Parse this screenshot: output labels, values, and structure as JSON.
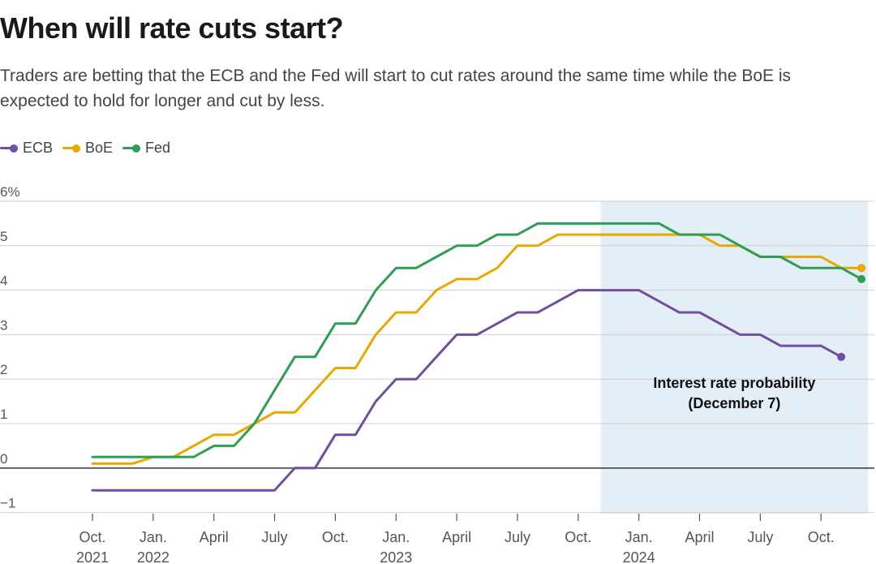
{
  "header": {
    "title": "When will rate cuts start?",
    "subtitle": "Traders are betting that the ECB and the Fed will start to cut rates around the same time while the BoE is expected to hold for longer and cut by less."
  },
  "legend": [
    {
      "name": "ECB",
      "color": "#6f4ea4"
    },
    {
      "name": "BoE",
      "color": "#e8a800"
    },
    {
      "name": "Fed",
      "color": "#2e9e55"
    }
  ],
  "chart_data": {
    "type": "line",
    "x_start": "2021-10",
    "x_end": "2024-12",
    "ylim": [
      -1,
      6
    ],
    "y_ticks": [
      {
        "value": 6,
        "label": "6%"
      },
      {
        "value": 5,
        "label": "5"
      },
      {
        "value": 4,
        "label": "4"
      },
      {
        "value": 3,
        "label": "3"
      },
      {
        "value": 2,
        "label": "2"
      },
      {
        "value": 1,
        "label": "1"
      },
      {
        "value": 0,
        "label": "0"
      },
      {
        "value": -1,
        "label": "−1"
      }
    ],
    "x_ticks": [
      {
        "x": "2021-10",
        "label": "Oct.",
        "year": "2021"
      },
      {
        "x": "2022-01",
        "label": "Jan.",
        "year": "2022"
      },
      {
        "x": "2022-04",
        "label": "April",
        "year": ""
      },
      {
        "x": "2022-07",
        "label": "July",
        "year": ""
      },
      {
        "x": "2022-10",
        "label": "Oct.",
        "year": ""
      },
      {
        "x": "2023-01",
        "label": "Jan.",
        "year": "2023"
      },
      {
        "x": "2023-04",
        "label": "April",
        "year": ""
      },
      {
        "x": "2023-07",
        "label": "July",
        "year": ""
      },
      {
        "x": "2023-10",
        "label": "Oct.",
        "year": ""
      },
      {
        "x": "2024-01",
        "label": "Jan.",
        "year": "2024"
      },
      {
        "x": "2024-04",
        "label": "April",
        "year": ""
      },
      {
        "x": "2024-07",
        "label": "July",
        "year": ""
      },
      {
        "x": "2024-10",
        "label": "Oct.",
        "year": ""
      }
    ],
    "shaded_region": {
      "from": "2023-12",
      "to": "2024-12",
      "label_line1": "Interest rate probability",
      "label_line2": "(December 7)"
    },
    "series": [
      {
        "name": "ECB",
        "color": "#6f4ea4",
        "points": [
          [
            "2021-10",
            -0.5
          ],
          [
            "2022-07",
            -0.5
          ],
          [
            "2022-08",
            0.0
          ],
          [
            "2022-09",
            0.0
          ],
          [
            "2022-10",
            0.75
          ],
          [
            "2022-11",
            0.75
          ],
          [
            "2022-12",
            1.5
          ],
          [
            "2023-01",
            2.0
          ],
          [
            "2023-02",
            2.0
          ],
          [
            "2023-03",
            2.5
          ],
          [
            "2023-04",
            3.0
          ],
          [
            "2023-05",
            3.0
          ],
          [
            "2023-06",
            3.25
          ],
          [
            "2023-07",
            3.5
          ],
          [
            "2023-08",
            3.5
          ],
          [
            "2023-09",
            3.75
          ],
          [
            "2023-10",
            4.0
          ],
          [
            "2024-01",
            4.0
          ],
          [
            "2024-02",
            3.75
          ],
          [
            "2024-03",
            3.5
          ],
          [
            "2024-04",
            3.5
          ],
          [
            "2024-05",
            3.25
          ],
          [
            "2024-06",
            3.0
          ],
          [
            "2024-07",
            3.0
          ],
          [
            "2024-08",
            2.75
          ],
          [
            "2024-09",
            2.75
          ],
          [
            "2024-10",
            2.75
          ],
          [
            "2024-11",
            2.5
          ]
        ]
      },
      {
        "name": "BoE",
        "color": "#e8a800",
        "points": [
          [
            "2021-10",
            0.1
          ],
          [
            "2021-12",
            0.1
          ],
          [
            "2022-01",
            0.25
          ],
          [
            "2022-02",
            0.25
          ],
          [
            "2022-03",
            0.5
          ],
          [
            "2022-04",
            0.75
          ],
          [
            "2022-05",
            0.75
          ],
          [
            "2022-06",
            1.0
          ],
          [
            "2022-07",
            1.25
          ],
          [
            "2022-08",
            1.25
          ],
          [
            "2022-09",
            1.75
          ],
          [
            "2022-10",
            2.25
          ],
          [
            "2022-11",
            2.25
          ],
          [
            "2022-12",
            3.0
          ],
          [
            "2023-01",
            3.5
          ],
          [
            "2023-02",
            3.5
          ],
          [
            "2023-03",
            4.0
          ],
          [
            "2023-04",
            4.25
          ],
          [
            "2023-05",
            4.25
          ],
          [
            "2023-06",
            4.5
          ],
          [
            "2023-07",
            5.0
          ],
          [
            "2023-08",
            5.0
          ],
          [
            "2023-09",
            5.25
          ],
          [
            "2024-04",
            5.25
          ],
          [
            "2024-05",
            5.0
          ],
          [
            "2024-06",
            5.0
          ],
          [
            "2024-07",
            4.75
          ],
          [
            "2024-09",
            4.75
          ],
          [
            "2024-10",
            4.75
          ],
          [
            "2024-11",
            4.5
          ],
          [
            "2024-12",
            4.5
          ]
        ]
      },
      {
        "name": "Fed",
        "color": "#2e9e55",
        "points": [
          [
            "2021-10",
            0.25
          ],
          [
            "2022-02",
            0.25
          ],
          [
            "2022-03",
            0.25
          ],
          [
            "2022-04",
            0.5
          ],
          [
            "2022-05",
            0.5
          ],
          [
            "2022-06",
            1.0
          ],
          [
            "2022-07",
            1.75
          ],
          [
            "2022-08",
            2.5
          ],
          [
            "2022-09",
            2.5
          ],
          [
            "2022-10",
            3.25
          ],
          [
            "2022-11",
            3.25
          ],
          [
            "2022-12",
            4.0
          ],
          [
            "2023-01",
            4.5
          ],
          [
            "2023-02",
            4.5
          ],
          [
            "2023-03",
            4.75
          ],
          [
            "2023-04",
            5.0
          ],
          [
            "2023-05",
            5.0
          ],
          [
            "2023-06",
            5.25
          ],
          [
            "2023-07",
            5.25
          ],
          [
            "2023-08",
            5.5
          ],
          [
            "2024-02",
            5.5
          ],
          [
            "2024-03",
            5.25
          ],
          [
            "2024-04",
            5.25
          ],
          [
            "2024-05",
            5.25
          ],
          [
            "2024-06",
            5.0
          ],
          [
            "2024-07",
            4.75
          ],
          [
            "2024-08",
            4.75
          ],
          [
            "2024-09",
            4.5
          ],
          [
            "2024-10",
            4.5
          ],
          [
            "2024-11",
            4.5
          ],
          [
            "2024-12",
            4.25
          ]
        ]
      }
    ]
  }
}
